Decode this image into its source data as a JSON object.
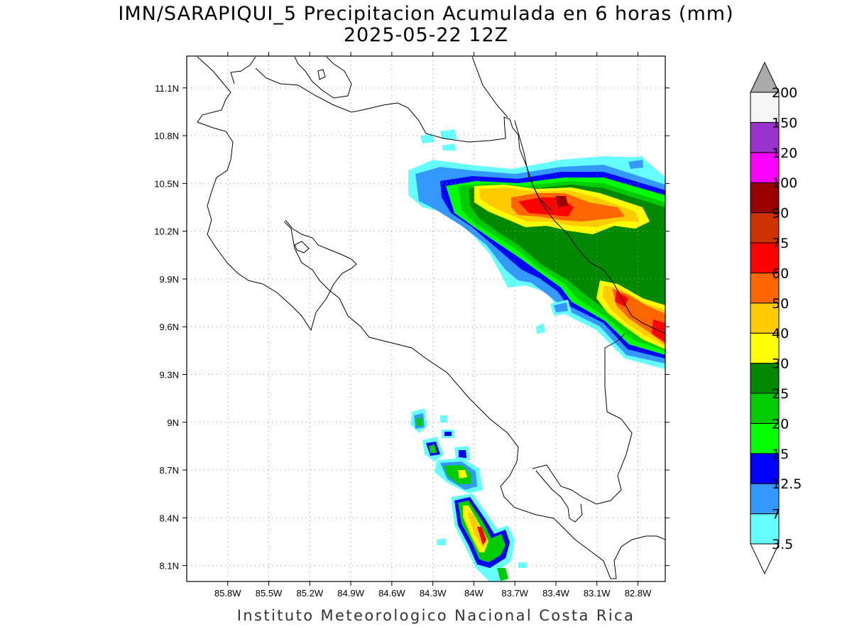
{
  "title": {
    "line1": "IMN/SARAPIQUI_5 Precipitacion Acumulada en 6 horas (mm)",
    "line2": "2025-05-22 12Z"
  },
  "footer": "Instituto Meteorologico Nacional Costa Rica",
  "map": {
    "lon_range": [
      -86.1,
      -82.6
    ],
    "lat_range": [
      8.0,
      11.3
    ],
    "lon_ticks": [
      "85.8W",
      "85.5W",
      "85.2W",
      "84.9W",
      "84.6W",
      "84.3W",
      "84W",
      "83.7W",
      "83.4W",
      "83.1W",
      "82.8W"
    ],
    "lat_ticks": [
      "8.1N",
      "8.4N",
      "8.7N",
      "9N",
      "9.3N",
      "9.6N",
      "9.9N",
      "10.2N",
      "10.5N",
      "10.8N",
      "11.1N"
    ],
    "grid": true
  },
  "colorbar": {
    "labels": [
      "3.5",
      "7",
      "12.5",
      "15",
      "20",
      "25",
      "30",
      "40",
      "50",
      "60",
      "75",
      "90",
      "100",
      "120",
      "150",
      "200"
    ],
    "colors": [
      "#66ffff",
      "#3399ff",
      "#0000ff",
      "#00ff00",
      "#00cc00",
      "#008800",
      "#ffff00",
      "#ffcc00",
      "#ff6600",
      "#ff0000",
      "#cc3300",
      "#990000",
      "#ff00ff",
      "#9933cc",
      "#f5f5f5"
    ],
    "over_color": "#aaaaaa",
    "under_color": "#ffffff"
  }
}
